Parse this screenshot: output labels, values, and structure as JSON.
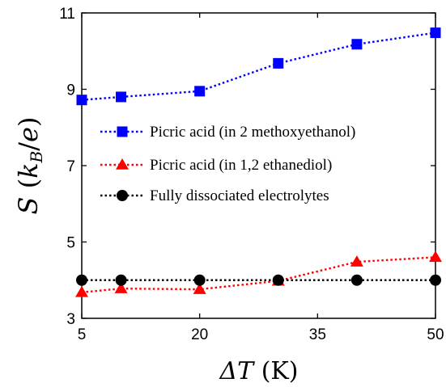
{
  "chart_data": {
    "type": "line",
    "xlabel": "ΔT (K)",
    "ylabel": "S (k_B/e)",
    "xlim": [
      5,
      50
    ],
    "ylim": [
      3,
      11
    ],
    "xticks": [
      "5",
      "20",
      "35",
      "50"
    ],
    "yticks": [
      "3",
      "5",
      "7",
      "9",
      "11"
    ],
    "grid": false,
    "legend_placement": "center-left",
    "series": [
      {
        "name": "Picric acid (in 2 methoxyethanol)",
        "color": "#0000ff",
        "marker": "square",
        "line_style": "dotted",
        "x": [
          5,
          10,
          20,
          30,
          40,
          50
        ],
        "y": [
          8.72,
          8.8,
          8.95,
          9.68,
          10.18,
          10.48
        ]
      },
      {
        "name": "Picric acid (in 1,2 ethanediol)",
        "color": "#ff0000",
        "marker": "triangle",
        "line_style": "dotted",
        "x": [
          5,
          10,
          20,
          30,
          40,
          50
        ],
        "y": [
          3.68,
          3.78,
          3.76,
          3.98,
          4.48,
          4.6
        ]
      },
      {
        "name": "Fully dissociated electrolytes",
        "color": "#000000",
        "marker": "circle",
        "line_style": "dotted",
        "x": [
          5,
          10,
          20,
          30,
          40,
          50
        ],
        "y": [
          4.0,
          4.0,
          4.0,
          4.0,
          4.0,
          4.0
        ]
      }
    ]
  }
}
